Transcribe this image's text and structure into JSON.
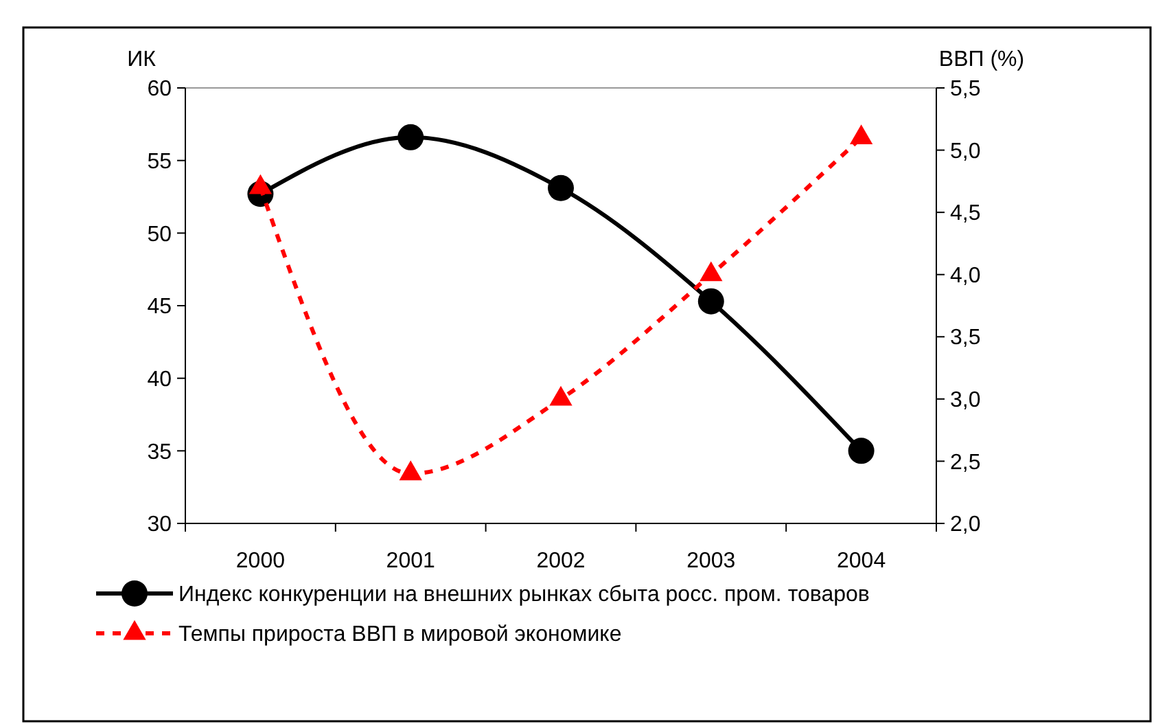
{
  "chart_data": {
    "type": "line",
    "categories": [
      "2000",
      "2001",
      "2002",
      "2003",
      "2004"
    ],
    "ylabel": "ИК",
    "y2label": "ВВП (%)",
    "ylim": [
      30,
      60
    ],
    "yticks": [
      30,
      35,
      40,
      45,
      50,
      55,
      60
    ],
    "y2lim": [
      2.0,
      5.5
    ],
    "y2ticks": [
      {
        "value": 2.0,
        "label": "2,0"
      },
      {
        "value": 2.5,
        "label": "2,5"
      },
      {
        "value": 3.0,
        "label": "3,0"
      },
      {
        "value": 3.5,
        "label": "3,5"
      },
      {
        "value": 4.0,
        "label": "4,0"
      },
      {
        "value": 4.5,
        "label": "4,5"
      },
      {
        "value": 5.0,
        "label": "5,0"
      },
      {
        "value": 5.5,
        "label": "5,5"
      }
    ],
    "legend": "bottom",
    "grid": false,
    "series": [
      {
        "name": "Индекс конкуренции на внешних рынках сбыта росс. пром. товаров",
        "color": "#000000",
        "values": [
          52.7,
          56.6,
          53.1,
          45.3,
          35.0
        ],
        "marker": "circle",
        "line_style": "solid"
      },
      {
        "name": "Темпы прироста ВВП в мировой экономике",
        "color": "#ff0000",
        "values": [
          4.7,
          2.4,
          3.0,
          4.0,
          5.1
        ],
        "axis": "y2",
        "marker": "triangle",
        "line_style": "dashed"
      }
    ]
  }
}
